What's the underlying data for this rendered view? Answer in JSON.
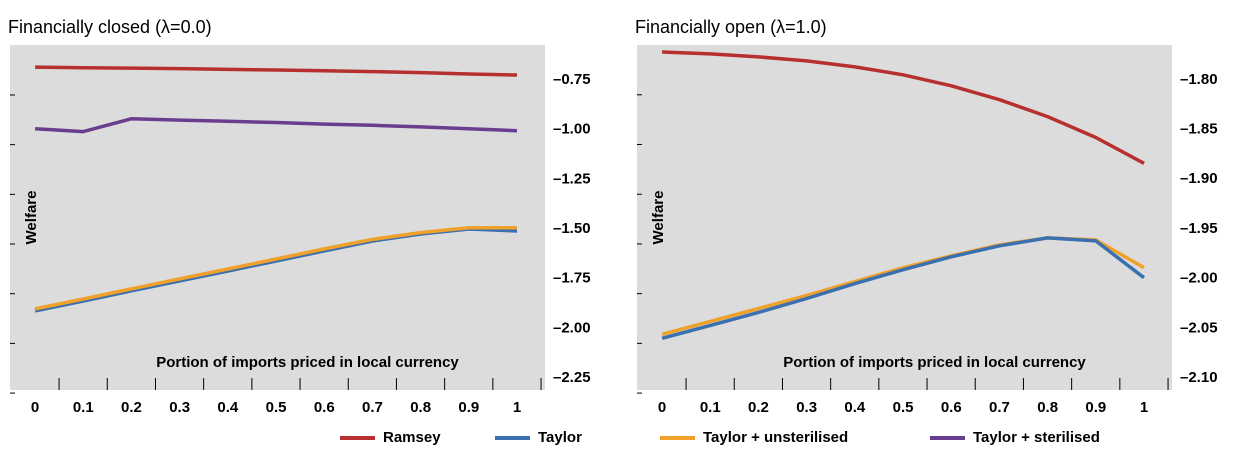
{
  "chart_data": [
    {
      "type": "line",
      "title": "Financially closed (λ=0.0)",
      "xlabel": "Portion of imports priced in local currency",
      "ylabel": "Welfare",
      "x": [
        0,
        0.1,
        0.2,
        0.3,
        0.4,
        0.5,
        0.6,
        0.7,
        0.8,
        0.9,
        1
      ],
      "xlim": [
        -0.052,
        1.058
      ],
      "xticks": [
        0,
        0.1,
        0.2,
        0.3,
        0.4,
        0.5,
        0.6,
        0.7,
        0.8,
        0.9,
        1
      ],
      "ylim": [
        -2.31,
        -0.574
      ],
      "yticks": [
        {
          "value": -0.75,
          "label": "–0.75"
        },
        {
          "value": -1.0,
          "label": "–1.00"
        },
        {
          "value": -1.25,
          "label": "–1.25"
        },
        {
          "value": -1.5,
          "label": "–1.50"
        },
        {
          "value": -1.75,
          "label": "–1.75"
        },
        {
          "value": -2.0,
          "label": "–2.00"
        },
        {
          "value": -2.25,
          "label": "–2.25"
        }
      ],
      "series": [
        {
          "name": "Ramsey",
          "color": "#b5302e",
          "values": [
            -0.685,
            -0.688,
            -0.69,
            -0.693,
            -0.697,
            -0.7,
            -0.704,
            -0.708,
            -0.713,
            -0.72,
            -0.725
          ]
        },
        {
          "name": "Taylor",
          "color": "#3a6fb0",
          "values": [
            -1.912,
            -1.862,
            -1.811,
            -1.761,
            -1.711,
            -1.661,
            -1.61,
            -1.56,
            -1.525,
            -1.5,
            -1.51
          ]
        },
        {
          "name": "Taylor + unsterilised",
          "color": "#f0a12c",
          "values": [
            -1.902,
            -1.852,
            -1.801,
            -1.751,
            -1.701,
            -1.651,
            -1.6,
            -1.552,
            -1.518,
            -1.494,
            -1.494
          ]
        },
        {
          "name": "Taylor + sterilised",
          "color": "#6a3d8f",
          "values": [
            -0.995,
            -1.01,
            -0.945,
            -0.952,
            -0.958,
            -0.964,
            -0.972,
            -0.978,
            -0.986,
            -0.995,
            -1.005
          ]
        }
      ]
    },
    {
      "type": "line",
      "title": "Financially open (λ=1.0)",
      "xlabel": "Portion of imports priced in local currency",
      "ylabel": "Welfare",
      "x": [
        0,
        0.1,
        0.2,
        0.3,
        0.4,
        0.5,
        0.6,
        0.7,
        0.8,
        0.9,
        1
      ],
      "xlim": [
        -0.052,
        1.058
      ],
      "xticks": [
        0,
        0.1,
        0.2,
        0.3,
        0.4,
        0.5,
        0.6,
        0.7,
        0.8,
        0.9,
        1
      ],
      "ylim": [
        -2.112,
        -1.765
      ],
      "yticks": [
        {
          "value": -1.8,
          "label": "–1.80"
        },
        {
          "value": -1.85,
          "label": "–1.85"
        },
        {
          "value": -1.9,
          "label": "–1.90"
        },
        {
          "value": -1.95,
          "label": "–1.95"
        },
        {
          "value": -2.0,
          "label": "–2.00"
        },
        {
          "value": -2.05,
          "label": "–2.05"
        },
        {
          "value": -2.1,
          "label": "–2.10"
        }
      ],
      "series": [
        {
          "name": "Ramsey",
          "color": "#b5302e",
          "values": [
            -1.772,
            -1.774,
            -1.777,
            -1.781,
            -1.787,
            -1.795,
            -1.806,
            -1.82,
            -1.837,
            -1.858,
            -1.884
          ]
        },
        {
          "name": "Taylor + unsterilised",
          "color": "#f0a12c",
          "values": [
            -2.056,
            -2.043,
            -2.03,
            -2.017,
            -2.003,
            -1.989,
            -1.977,
            -1.966,
            -1.959,
            -1.961,
            -1.989
          ]
        },
        {
          "name": "Taylor",
          "color": "#3a6fb0",
          "values": [
            -2.06,
            -2.047,
            -2.034,
            -2.02,
            -2.005,
            -1.991,
            -1.978,
            -1.967,
            -1.959,
            -1.962,
            -1.999
          ]
        }
      ]
    }
  ]
}
